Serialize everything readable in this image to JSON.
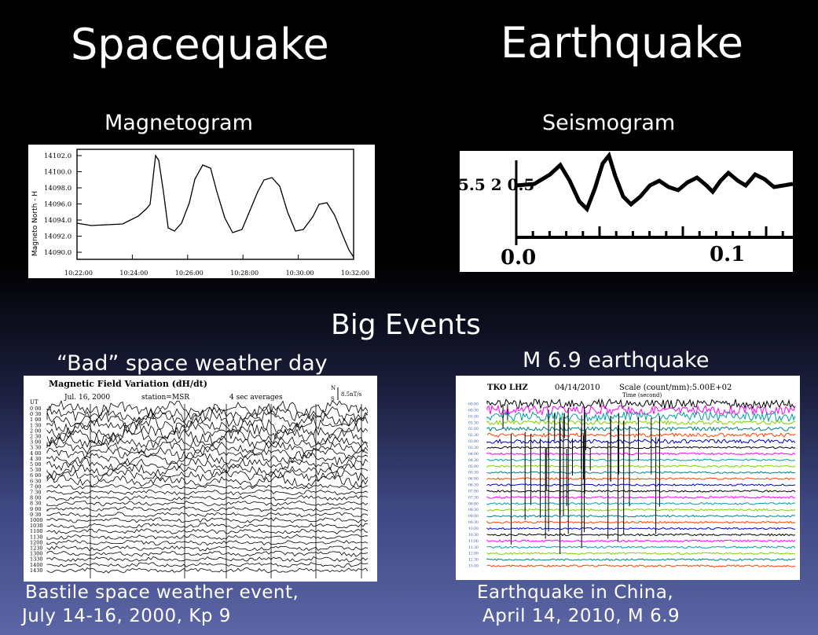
{
  "titles": {
    "left": "Spacequake",
    "right": "Earthquake"
  },
  "subtitles": {
    "left": "Magnetogram",
    "right": "Seismogram"
  },
  "middle_title": "Big Events",
  "event_titles": {
    "left": "“Bad” space weather day",
    "right": "M 6.9  earthquake"
  },
  "captions": {
    "left_line1": "Bastile space weather event,",
    "left_line2": "July 14-16, 2000,   Kp 9",
    "right_line1": "Earthquake in China,",
    "right_line2": "April 14, 2010,    M 6.9"
  },
  "magnetogram": {
    "ylabel": "Magneto North - H",
    "yticks": [
      "14102.0",
      "14100.0",
      "14098.0",
      "14096.0",
      "14094.0",
      "14092.0",
      "14090.0"
    ],
    "xticks": [
      "10:22:00",
      "10:24:00",
      "10:26:00",
      "10:28:00",
      "10:30:00",
      "10:32:00"
    ]
  },
  "seismogram": {
    "ylabel": "5.5 2 0.5",
    "xticks": [
      "0.0",
      "0.1"
    ]
  },
  "dhdt": {
    "title": "Magnetic Field Variation (dH/dt)",
    "date": "Jul. 16, 2000",
    "station": "station=MSR",
    "averages": "4 sec averages",
    "scale": "8.5nT/s",
    "scale_n": "N",
    "scale_s": "S",
    "ut_label": "UT",
    "hours": [
      "0 00",
      "0 30",
      "1 00",
      "1 30",
      "2 00",
      "2 30",
      "3 00",
      "3 30",
      "4 00",
      "4 30",
      "5 00",
      "5 30",
      "6 00",
      "6 30",
      "7 00",
      "7 30",
      "8 00",
      "8 30",
      "9 00",
      "9 30",
      "1000",
      "1030",
      "1100",
      "1130",
      "1200",
      "1230",
      "1300",
      "1330",
      "1400",
      "1430"
    ]
  },
  "tko": {
    "station": "TKO LHZ",
    "date": "04/14/2010",
    "scale": "Scale (count/mm):5.00E+02",
    "time_label": "Time (second)",
    "hours": [
      "00.00",
      "00.30",
      "01.00",
      "01.30",
      "02.00",
      "02.30",
      "03.00",
      "03.30",
      "04.00",
      "04.30",
      "05.00",
      "05.30",
      "06.00",
      "06.30",
      "07.00",
      "07.30",
      "08.00",
      "08.30",
      "09.00",
      "09.30",
      "10.00",
      "10.30",
      "11.00",
      "11.30",
      "12.00",
      "12.30",
      "13.00"
    ],
    "colors": [
      "#000000",
      "#ff00ff",
      "#00a0a0",
      "#80d000",
      "#008080",
      "#ff4000",
      "#0000c0",
      "#000000",
      "#ff00ff",
      "#00a0a0",
      "#80d000",
      "#008080",
      "#ff4000",
      "#0000c0",
      "#000000",
      "#ff00ff",
      "#00a0a0",
      "#80d000",
      "#008080",
      "#ff4000",
      "#0000c0",
      "#000000",
      "#ff00ff",
      "#00a0a0",
      "#80d000",
      "#008080",
      "#ff4000"
    ]
  }
}
